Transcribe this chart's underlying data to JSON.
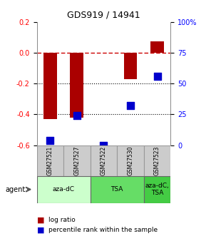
{
  "title": "GDS919 / 14941",
  "samples": [
    "GSM27521",
    "GSM27527",
    "GSM27522",
    "GSM27530",
    "GSM27523"
  ],
  "log_ratio": [
    -0.43,
    -0.42,
    0.0,
    -0.17,
    0.075
  ],
  "percentile_rank": [
    4,
    24,
    0,
    32,
    56
  ],
  "ylim_left": [
    -0.6,
    0.2
  ],
  "ylim_right": [
    0,
    100
  ],
  "yticks_left": [
    -0.6,
    -0.4,
    -0.2,
    0.0,
    0.2
  ],
  "yticks_right": [
    0,
    25,
    50,
    75,
    100
  ],
  "ytick_labels_right": [
    "0",
    "25",
    "50",
    "75",
    "100%"
  ],
  "bar_color": "#aa0000",
  "dot_color": "#0000cc",
  "dashed_line_color": "#cc0000",
  "agent_groups": [
    {
      "label": "aza-dC",
      "start": 0,
      "end": 2,
      "color": "#ccffcc"
    },
    {
      "label": "TSA",
      "start": 2,
      "end": 4,
      "color": "#66dd66"
    },
    {
      "label": "aza-dC,\nTSA",
      "start": 4,
      "end": 5,
      "color": "#44cc44"
    }
  ],
  "sample_box_color": "#cccccc",
  "legend_bar_label": "log ratio",
  "legend_dot_label": "percentile rank within the sample",
  "bar_width": 0.5,
  "dot_size": 55,
  "background_color": "#ffffff",
  "plot_bg_color": "#ffffff"
}
